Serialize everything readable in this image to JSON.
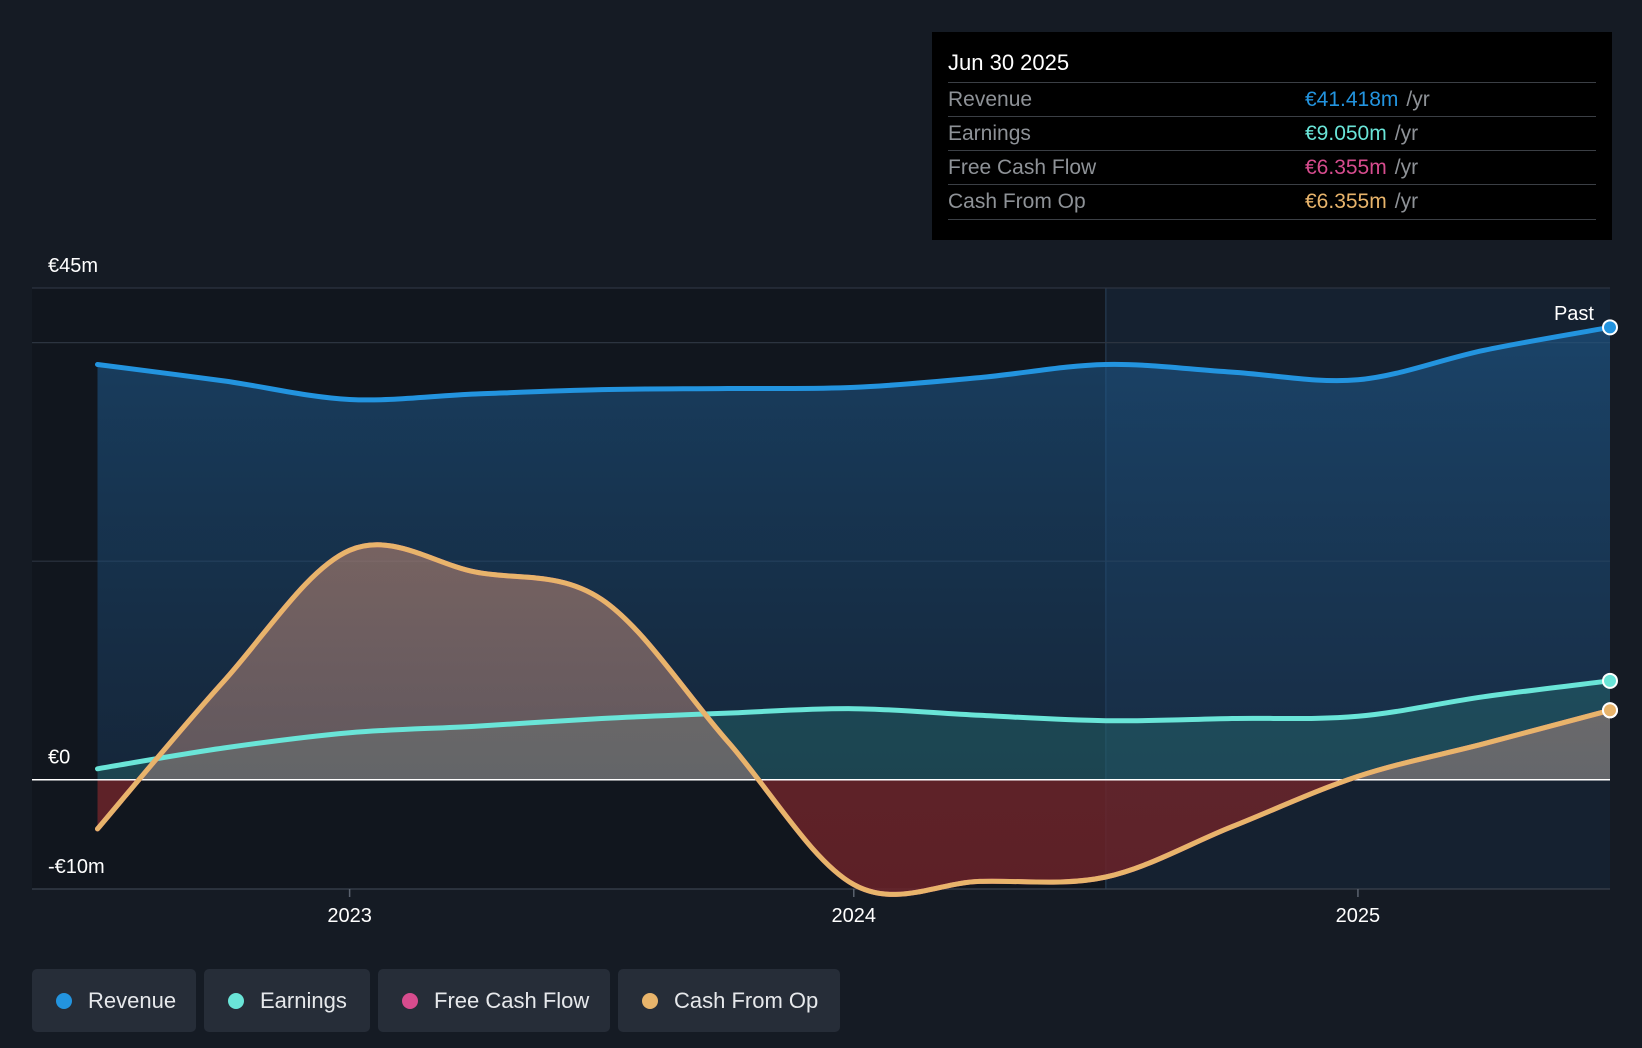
{
  "tooltip": {
    "date": "Jun 30 2025",
    "unit": "/yr",
    "rows": [
      {
        "label": "Revenue",
        "value": "€41.418m",
        "color": "#2394df"
      },
      {
        "label": "Earnings",
        "value": "€9.050m",
        "color": "#6ae5d8"
      },
      {
        "label": "Free Cash Flow",
        "value": "€6.355m",
        "color": "#d74c8e"
      },
      {
        "label": "Cash From Op",
        "value": "€6.355m",
        "color": "#e8b46b"
      }
    ]
  },
  "past_label": "Past",
  "legend": [
    {
      "label": "Revenue",
      "color": "#2394df"
    },
    {
      "label": "Earnings",
      "color": "#6ae5d8"
    },
    {
      "label": "Free Cash Flow",
      "color": "#d74c8e"
    },
    {
      "label": "Cash From Op",
      "color": "#e8b46b"
    }
  ],
  "chart_data": {
    "type": "line",
    "title": "",
    "xlabel": "",
    "ylabel": "",
    "y_tick_labels": [
      "€45m",
      "€0",
      "-€10m"
    ],
    "y_ticks": [
      45,
      0,
      -10
    ],
    "ylim": [
      -10,
      45
    ],
    "xlim": [
      2022.37,
      2025.5
    ],
    "x_tick_labels": [
      "2023",
      "2024",
      "2025"
    ],
    "x_ticks": [
      2023,
      2024,
      2025
    ],
    "past_divider_x": 2024.5,
    "series": [
      {
        "name": "Revenue",
        "color": "#2394df",
        "x": [
          2022.5,
          2022.75,
          2023.0,
          2023.25,
          2023.5,
          2023.75,
          2024.0,
          2024.25,
          2024.5,
          2024.75,
          2025.0,
          2025.25,
          2025.5
        ],
        "y": [
          38.0,
          36.5,
          34.8,
          35.3,
          35.7,
          35.8,
          35.9,
          36.8,
          38.0,
          37.3,
          36.6,
          39.3,
          41.4
        ]
      },
      {
        "name": "Earnings",
        "color": "#6ae5d8",
        "x": [
          2022.5,
          2022.75,
          2023.0,
          2023.25,
          2023.5,
          2023.75,
          2024.0,
          2024.25,
          2024.5,
          2024.75,
          2025.0,
          2025.25,
          2025.5
        ],
        "y": [
          1.0,
          2.9,
          4.3,
          4.9,
          5.6,
          6.1,
          6.5,
          5.9,
          5.4,
          5.6,
          5.8,
          7.6,
          9.05
        ]
      },
      {
        "name": "Free Cash Flow",
        "color": "#d74c8e",
        "x": [
          2022.5,
          2022.75,
          2023.0,
          2023.25,
          2023.5,
          2023.75,
          2024.0,
          2024.25,
          2024.5,
          2024.75,
          2025.0,
          2025.25,
          2025.5
        ],
        "y": [
          -4.5,
          9.0,
          21.0,
          19.0,
          16.5,
          3.5,
          -9.6,
          -9.3,
          -8.9,
          -4.3,
          0.3,
          3.3,
          6.355
        ]
      },
      {
        "name": "Cash From Op",
        "color": "#e8b46b",
        "x": [
          2022.5,
          2022.75,
          2023.0,
          2023.25,
          2023.5,
          2023.75,
          2024.0,
          2024.25,
          2024.5,
          2024.75,
          2025.0,
          2025.25,
          2025.5
        ],
        "y": [
          -4.5,
          9.0,
          21.0,
          19.0,
          16.5,
          3.5,
          -9.6,
          -9.3,
          -8.9,
          -4.3,
          0.3,
          3.3,
          6.355
        ]
      }
    ]
  }
}
